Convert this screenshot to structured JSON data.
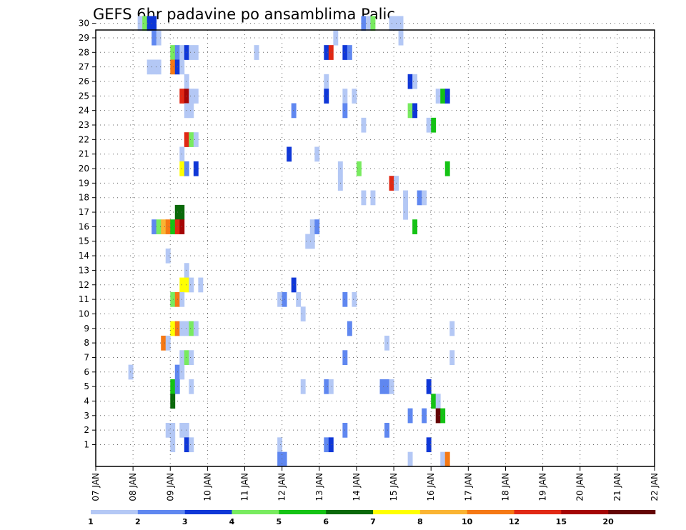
{
  "chart_data": {
    "type": "heatmap",
    "title": "GEFS 6hr padavine po ansamblima Palic",
    "x_ticks": [
      "07 JAN",
      "08 JAN",
      "09 JAN",
      "10 JAN",
      "11 JAN",
      "12 JAN",
      "13 JAN",
      "14 JAN",
      "15 JAN",
      "16 JAN",
      "17 JAN",
      "18 JAN",
      "19 JAN",
      "20 JAN",
      "21 JAN",
      "22 JAN"
    ],
    "y_ticks": [
      "1",
      "2",
      "3",
      "4",
      "5",
      "6",
      "7",
      "8",
      "9",
      "10",
      "11",
      "12",
      "13",
      "14",
      "15",
      "16",
      "17",
      "18",
      "19",
      "20",
      "21",
      "22",
      "23",
      "24",
      "25",
      "26",
      "27",
      "28",
      "29",
      "30"
    ],
    "color_levels": [
      "1",
      "2",
      "3",
      "4",
      "5",
      "6",
      "7",
      "8",
      "10",
      "12",
      "15",
      "20"
    ],
    "colors": [
      "#b4c8f5",
      "#5f87f0",
      "#0f37d7",
      "#78eb5f",
      "#14c314",
      "#0a690a",
      "#ffff00",
      "#fab432",
      "#f57814",
      "#e12814",
      "#a50505",
      "#640505"
    ],
    "grid": true,
    "x_unit_note": "x = hours since 07 JAN 00Z; each cell = 6 h",
    "cells": [
      [
        27,
        30,
        1
      ],
      [
        30,
        30,
        4
      ],
      [
        33,
        30,
        3
      ],
      [
        36,
        30,
        3
      ],
      [
        171,
        30,
        2
      ],
      [
        174,
        30,
        1
      ],
      [
        177,
        30,
        4
      ],
      [
        189,
        30,
        1
      ],
      [
        192,
        30,
        1
      ],
      [
        195,
        30,
        1
      ],
      [
        36,
        29,
        2
      ],
      [
        39,
        29,
        1
      ],
      [
        153,
        29,
        1
      ],
      [
        195,
        29,
        1
      ],
      [
        48,
        28,
        4
      ],
      [
        51,
        28,
        2
      ],
      [
        54,
        28,
        1
      ],
      [
        57,
        28,
        3
      ],
      [
        60,
        28,
        1
      ],
      [
        63,
        28,
        1
      ],
      [
        102,
        28,
        1
      ],
      [
        147,
        28,
        3
      ],
      [
        150,
        28,
        10
      ],
      [
        159,
        28,
        3
      ],
      [
        162,
        28,
        2
      ],
      [
        33,
        27,
        1
      ],
      [
        36,
        27,
        1
      ],
      [
        39,
        27,
        1
      ],
      [
        48,
        27,
        9
      ],
      [
        51,
        27,
        3
      ],
      [
        54,
        27,
        1
      ],
      [
        57,
        26,
        1
      ],
      [
        147,
        26,
        1
      ],
      [
        201,
        26,
        3
      ],
      [
        204,
        26,
        1
      ],
      [
        54,
        25,
        10
      ],
      [
        57,
        25,
        11
      ],
      [
        60,
        25,
        1
      ],
      [
        63,
        25,
        1
      ],
      [
        147,
        25,
        3
      ],
      [
        159,
        25,
        1
      ],
      [
        165,
        25,
        1
      ],
      [
        219,
        25,
        1
      ],
      [
        222,
        25,
        5
      ],
      [
        225,
        25,
        3
      ],
      [
        57,
        24,
        1
      ],
      [
        60,
        24,
        1
      ],
      [
        126,
        24,
        2
      ],
      [
        159,
        24,
        2
      ],
      [
        201,
        24,
        4
      ],
      [
        204,
        24,
        3
      ],
      [
        171,
        23,
        1
      ],
      [
        213,
        23,
        1
      ],
      [
        216,
        23,
        5
      ],
      [
        57,
        22,
        10
      ],
      [
        60,
        22,
        4
      ],
      [
        63,
        22,
        1
      ],
      [
        54,
        21,
        1
      ],
      [
        123,
        21,
        3
      ],
      [
        141,
        21,
        1
      ],
      [
        54,
        20,
        7
      ],
      [
        57,
        20,
        2
      ],
      [
        63,
        20,
        3
      ],
      [
        156,
        20,
        1
      ],
      [
        168,
        20,
        4
      ],
      [
        225,
        20,
        5
      ],
      [
        156,
        19,
        1
      ],
      [
        189,
        19,
        10
      ],
      [
        192,
        19,
        1
      ],
      [
        171,
        18,
        1
      ],
      [
        177,
        18,
        1
      ],
      [
        198,
        18,
        1
      ],
      [
        207,
        18,
        2
      ],
      [
        210,
        18,
        1
      ],
      [
        198,
        17,
        1
      ],
      [
        51,
        17,
        6
      ],
      [
        54,
        17,
        6
      ],
      [
        36,
        16,
        2
      ],
      [
        39,
        16,
        4
      ],
      [
        42,
        16,
        8
      ],
      [
        45,
        16,
        9
      ],
      [
        48,
        16,
        5
      ],
      [
        51,
        16,
        10
      ],
      [
        54,
        16,
        11
      ],
      [
        138,
        16,
        1
      ],
      [
        141,
        16,
        2
      ],
      [
        204,
        16,
        5
      ],
      [
        135,
        15,
        1
      ],
      [
        138,
        15,
        1
      ],
      [
        45,
        14,
        1
      ],
      [
        57,
        13,
        1
      ],
      [
        54,
        12,
        7
      ],
      [
        57,
        12,
        7
      ],
      [
        60,
        12,
        1
      ],
      [
        66,
        12,
        1
      ],
      [
        126,
        12,
        3
      ],
      [
        48,
        11,
        4
      ],
      [
        51,
        11,
        9
      ],
      [
        54,
        11,
        1
      ],
      [
        117,
        11,
        1
      ],
      [
        120,
        11,
        2
      ],
      [
        129,
        11,
        1
      ],
      [
        159,
        11,
        2
      ],
      [
        165,
        11,
        1
      ],
      [
        132,
        10,
        1
      ],
      [
        48,
        9,
        7
      ],
      [
        51,
        9,
        9
      ],
      [
        54,
        9,
        1
      ],
      [
        57,
        9,
        1
      ],
      [
        60,
        9,
        4
      ],
      [
        63,
        9,
        1
      ],
      [
        162,
        9,
        2
      ],
      [
        228,
        9,
        1
      ],
      [
        42,
        8,
        9
      ],
      [
        45,
        8,
        1
      ],
      [
        186,
        8,
        1
      ],
      [
        54,
        7,
        1
      ],
      [
        57,
        7,
        4
      ],
      [
        60,
        7,
        1
      ],
      [
        159,
        7,
        2
      ],
      [
        228,
        7,
        1
      ],
      [
        21,
        6,
        1
      ],
      [
        51,
        6,
        2
      ],
      [
        54,
        6,
        1
      ],
      [
        48,
        5,
        5
      ],
      [
        51,
        5,
        2
      ],
      [
        60,
        5,
        1
      ],
      [
        132,
        5,
        1
      ],
      [
        147,
        5,
        2
      ],
      [
        150,
        5,
        1
      ],
      [
        183,
        5,
        2
      ],
      [
        186,
        5,
        2
      ],
      [
        189,
        5,
        1
      ],
      [
        213,
        5,
        3
      ],
      [
        48,
        4,
        6
      ],
      [
        216,
        4,
        5
      ],
      [
        219,
        4,
        1
      ],
      [
        201,
        3,
        2
      ],
      [
        210,
        3,
        2
      ],
      [
        219,
        3,
        12
      ],
      [
        222,
        3,
        5
      ],
      [
        45,
        2,
        1
      ],
      [
        48,
        2,
        1
      ],
      [
        54,
        2,
        1
      ],
      [
        57,
        2,
        1
      ],
      [
        159,
        2,
        2
      ],
      [
        186,
        2,
        2
      ],
      [
        48,
        1,
        1
      ],
      [
        57,
        1,
        3
      ],
      [
        60,
        1,
        1
      ],
      [
        117,
        1,
        1
      ],
      [
        147,
        1,
        2
      ],
      [
        150,
        1,
        3
      ],
      [
        213,
        1,
        3
      ],
      [
        117,
        0,
        2
      ],
      [
        120,
        0,
        2
      ],
      [
        201,
        0,
        1
      ],
      [
        222,
        0,
        1
      ],
      [
        225,
        0,
        9
      ]
    ]
  }
}
